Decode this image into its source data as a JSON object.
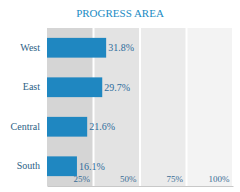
{
  "chart_data": {
    "type": "bar",
    "title": "PROGRESS AREA",
    "orientation": "horizontal",
    "categories": [
      "West",
      "East",
      "Central",
      "South"
    ],
    "values": [
      31.8,
      29.7,
      21.6,
      16.1
    ],
    "value_labels": [
      "31.8%",
      "29.7%",
      "21.6%",
      "16.1%"
    ],
    "data_labels": true,
    "color": "#1f87c1",
    "xlim": [
      0,
      100
    ],
    "xticks": [
      {
        "value": 25,
        "label": "25%"
      },
      {
        "value": 50,
        "label": "50%"
      },
      {
        "value": 75,
        "label": "75%"
      },
      {
        "value": 100,
        "label": "100%"
      }
    ],
    "grid": true
  }
}
